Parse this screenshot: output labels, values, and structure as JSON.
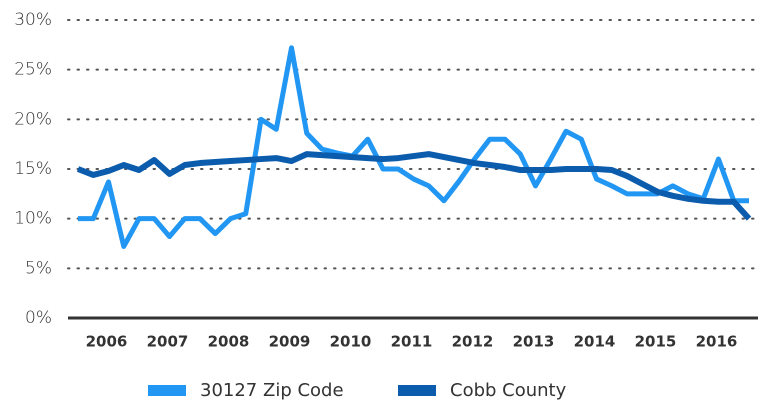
{
  "chart_data": {
    "type": "line",
    "categories": [
      null,
      null,
      "2006",
      null,
      null,
      null,
      "2007",
      null,
      null,
      null,
      "2008",
      null,
      null,
      null,
      "2009",
      null,
      null,
      null,
      "2010",
      null,
      null,
      null,
      "2011",
      null,
      null,
      null,
      "2012",
      null,
      null,
      null,
      "2013",
      null,
      null,
      null,
      "2014",
      null,
      null,
      null,
      "2015",
      null,
      null,
      null,
      "2016",
      null,
      null
    ],
    "series": [
      {
        "name": "30127 Zip Code",
        "color": "#2196f3",
        "values": [
          10,
          10,
          13.7,
          7.2,
          10,
          10,
          8.2,
          10,
          10,
          8.5,
          10,
          10.5,
          20,
          19,
          27.2,
          18.6,
          17,
          16.6,
          16.3,
          18,
          15,
          15,
          14,
          13.3,
          11.8,
          13.8,
          16,
          18,
          18,
          16.5,
          13.3,
          16,
          18.8,
          18,
          14,
          13.3,
          12.5,
          12.5,
          12.5,
          13.3,
          12.5,
          12,
          16,
          11.8,
          11.8
        ]
      },
      {
        "name": "Cobb County",
        "color": "#0b5cad",
        "values": [
          15,
          14.4,
          14.8,
          15.4,
          14.9,
          15.9,
          14.5,
          15.4,
          15.6,
          15.7,
          15.8,
          15.9,
          16,
          16.1,
          15.8,
          16.5,
          16.4,
          16.3,
          16.2,
          16.1,
          16,
          16.1,
          16.3,
          16.5,
          16.2,
          15.9,
          15.6,
          15.4,
          15.2,
          14.9,
          14.9,
          14.9,
          15,
          15,
          15,
          14.9,
          14.3,
          13.5,
          12.7,
          12.3,
          12,
          11.8,
          11.7,
          11.7,
          10
        ]
      }
    ],
    "ylim": [
      0,
      30
    ],
    "yticks": [
      {
        "value": 0,
        "label": "0%"
      },
      {
        "value": 5,
        "label": "5%"
      },
      {
        "value": 10,
        "label": "10%"
      },
      {
        "value": 15,
        "label": "15%"
      },
      {
        "value": 20,
        "label": "20%"
      },
      {
        "value": 25,
        "label": "25%"
      },
      {
        "value": 30,
        "label": "30%"
      }
    ],
    "grid": true,
    "legend": "bottom"
  }
}
